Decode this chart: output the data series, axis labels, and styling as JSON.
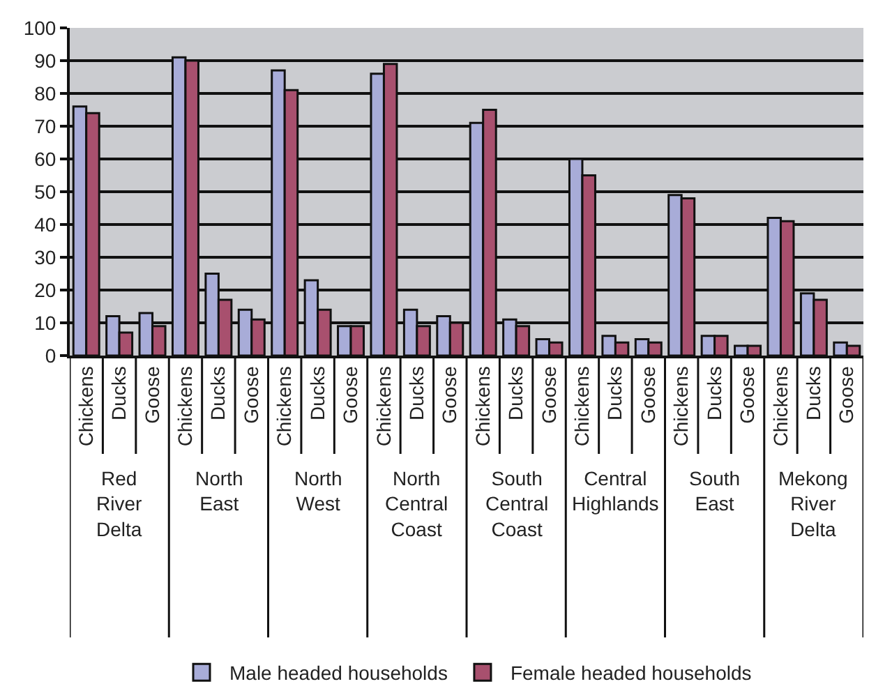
{
  "chart_data": {
    "type": "bar",
    "categories": [
      "Chickens",
      "Ducks",
      "Goose",
      "Chickens",
      "Ducks",
      "Goose",
      "Chickens",
      "Ducks",
      "Goose",
      "Chickens",
      "Ducks",
      "Goose",
      "Chickens",
      "Ducks",
      "Goose",
      "Chickens",
      "Ducks",
      "Goose",
      "Chickens",
      "Ducks",
      "Goose",
      "Chickens",
      "Ducks",
      "Goose"
    ],
    "series": [
      {
        "name": "Male headed households",
        "color": "#a8acd8",
        "values": [
          76,
          12,
          13,
          91,
          25,
          14,
          87,
          23,
          9,
          86,
          14,
          12,
          71,
          11,
          5,
          60,
          6,
          5,
          49,
          6,
          3,
          42,
          19,
          4
        ]
      },
      {
        "name": "Female headed households",
        "color": "#a8506e",
        "values": [
          74,
          7,
          9,
          90,
          17,
          11,
          81,
          14,
          9,
          89,
          9,
          10,
          75,
          9,
          4,
          55,
          4,
          4,
          48,
          6,
          3,
          41,
          17,
          3
        ]
      }
    ],
    "annotations": [
      "Red\nRiver\nDelta",
      "North\nEast",
      "North\nWest",
      "North\nCentral\nCoast",
      "South\nCentral\nCoast",
      "Central\nHighlands",
      "South\nEast",
      "Mekong\nRiver\nDelta"
    ],
    "ylim": [
      0,
      100
    ],
    "yticks": [
      0,
      10,
      20,
      30,
      40,
      50,
      60,
      70,
      80,
      90,
      100
    ],
    "grid": "y",
    "legend": "bottom"
  }
}
